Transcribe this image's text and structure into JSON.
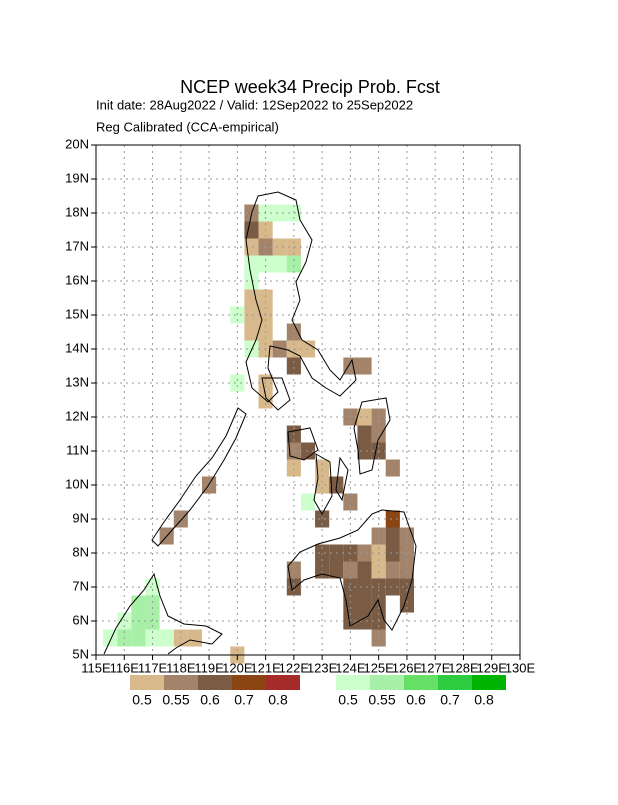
{
  "chart_data": {
    "type": "map",
    "title": "NCEP week34 Precip Prob. Fcst",
    "subtitle": [
      "Init date: 28Aug2022 / Valid: 12Sep2022 to 25Sep2022",
      "Reg Calibrated (CCA-empirical)"
    ],
    "xlim": [
      115,
      130
    ],
    "ylim": [
      5,
      20
    ],
    "xticks": [
      {
        "value": 115,
        "label": "115E"
      },
      {
        "value": 116,
        "label": "116E"
      },
      {
        "value": 117,
        "label": "117E"
      },
      {
        "value": 118,
        "label": "118E"
      },
      {
        "value": 119,
        "label": "119E"
      },
      {
        "value": 120,
        "label": "120E"
      },
      {
        "value": 121,
        "label": "121E"
      },
      {
        "value": 122,
        "label": "122E"
      },
      {
        "value": 123,
        "label": "123E"
      },
      {
        "value": 124,
        "label": "124E"
      },
      {
        "value": 125,
        "label": "125E"
      },
      {
        "value": 126,
        "label": "126E"
      },
      {
        "value": 127,
        "label": "127E"
      },
      {
        "value": 128,
        "label": "128E"
      },
      {
        "value": 129,
        "label": "129E"
      },
      {
        "value": 130,
        "label": "130E"
      }
    ],
    "yticks": [
      {
        "value": 5,
        "label": "5N"
      },
      {
        "value": 6,
        "label": "6N"
      },
      {
        "value": 7,
        "label": "7N"
      },
      {
        "value": 8,
        "label": "8N"
      },
      {
        "value": 9,
        "label": "9N"
      },
      {
        "value": 10,
        "label": "10N"
      },
      {
        "value": 11,
        "label": "11N"
      },
      {
        "value": 12,
        "label": "12N"
      },
      {
        "value": 13,
        "label": "13N"
      },
      {
        "value": 14,
        "label": "14N"
      },
      {
        "value": 15,
        "label": "15N"
      },
      {
        "value": 16,
        "label": "16N"
      },
      {
        "value": 17,
        "label": "17N"
      },
      {
        "value": 18,
        "label": "18N"
      },
      {
        "value": 19,
        "label": "19N"
      },
      {
        "value": 20,
        "label": "20N"
      }
    ],
    "grid": true,
    "cell_size": 0.5,
    "layers": [
      {
        "colors": [
          "#d8b98c",
          "#a3846a",
          "#7a5c45",
          "#8b4513",
          "#a52a2a"
        ],
        "labels": [
          0.5,
          0.55,
          0.6,
          0.7,
          0.8
        ],
        "cells": [
          [
            120.5,
            18,
            0.55
          ],
          [
            120.5,
            17.5,
            0.6
          ],
          [
            121,
            17.5,
            0.5
          ],
          [
            121.5,
            17,
            0.5
          ],
          [
            122,
            17,
            0.5
          ],
          [
            120.5,
            17,
            0.5
          ],
          [
            121,
            17,
            0.55
          ],
          [
            120.5,
            15.5,
            0.5
          ],
          [
            121,
            15.5,
            0.5
          ],
          [
            120.5,
            15,
            0.5
          ],
          [
            121,
            15,
            0.5
          ],
          [
            120.5,
            14.5,
            0.5
          ],
          [
            121,
            14.5,
            0.5
          ],
          [
            121,
            14,
            0.5
          ],
          [
            121.5,
            14,
            0.55
          ],
          [
            122,
            14.5,
            0.55
          ],
          [
            122,
            14,
            0.5
          ],
          [
            122.5,
            14,
            0.5
          ],
          [
            121,
            13,
            0.5
          ],
          [
            121,
            12.5,
            0.5
          ],
          [
            122,
            13.5,
            0.6
          ],
          [
            124,
            13.5,
            0.55
          ],
          [
            124.5,
            13.5,
            0.55
          ],
          [
            124,
            12,
            0.55
          ],
          [
            124.5,
            12,
            0.5
          ],
          [
            125,
            12,
            0.55
          ],
          [
            124.5,
            11.5,
            0.6
          ],
          [
            125,
            11.5,
            0.55
          ],
          [
            124.5,
            11,
            0.6
          ],
          [
            125,
            11,
            0.6
          ],
          [
            125.5,
            10.5,
            0.55
          ],
          [
            122,
            11.5,
            0.6
          ],
          [
            122,
            11,
            0.55
          ],
          [
            122.5,
            11,
            0.6
          ],
          [
            122,
            10.5,
            0.5
          ],
          [
            123,
            10.5,
            0.5
          ],
          [
            123,
            10,
            0.5
          ],
          [
            123.5,
            10,
            0.6
          ],
          [
            124,
            9.5,
            0.55
          ],
          [
            123,
            9,
            0.6
          ],
          [
            125.5,
            9,
            0.7
          ],
          [
            125,
            8.5,
            0.55
          ],
          [
            125.5,
            8.5,
            0.6
          ],
          [
            126,
            8.5,
            0.55
          ],
          [
            123,
            8,
            0.6
          ],
          [
            123.5,
            8,
            0.6
          ],
          [
            124,
            8,
            0.6
          ],
          [
            124.5,
            8,
            0.55
          ],
          [
            125,
            8,
            0.5
          ],
          [
            125.5,
            8,
            0.6
          ],
          [
            126,
            8,
            0.55
          ],
          [
            123,
            7.5,
            0.6
          ],
          [
            123.5,
            7.5,
            0.6
          ],
          [
            124,
            7.5,
            0.55
          ],
          [
            124.5,
            7.5,
            0.6
          ],
          [
            125,
            7.5,
            0.5
          ],
          [
            125.5,
            7.5,
            0.55
          ],
          [
            126,
            7.5,
            0.55
          ],
          [
            122,
            7.5,
            0.55
          ],
          [
            122,
            7,
            0.6
          ],
          [
            124,
            7,
            0.6
          ],
          [
            124.5,
            7,
            0.6
          ],
          [
            125,
            7,
            0.6
          ],
          [
            125.5,
            7,
            0.6
          ],
          [
            126,
            7,
            0.6
          ],
          [
            126,
            6.5,
            0.6
          ],
          [
            124,
            6.5,
            0.6
          ],
          [
            124.5,
            6.5,
            0.6
          ],
          [
            125,
            6.5,
            0.6
          ],
          [
            124,
            6,
            0.6
          ],
          [
            124.5,
            6,
            0.6
          ],
          [
            125,
            6,
            0.6
          ],
          [
            125,
            5.5,
            0.55
          ],
          [
            119,
            10,
            0.55
          ],
          [
            118,
            9,
            0.55
          ],
          [
            117.5,
            8.5,
            0.55
          ],
          [
            118,
            5.5,
            0.5
          ],
          [
            118.5,
            5.5,
            0.5
          ],
          [
            120,
            5,
            0.5
          ]
        ]
      },
      {
        "colors": [
          "#ccffcc",
          "#a8f0a8",
          "#66e066",
          "#2ecc40",
          "#00b400"
        ],
        "labels": [
          0.5,
          0.55,
          0.6,
          0.7,
          0.8
        ],
        "cells": [
          [
            121,
            18,
            0.5
          ],
          [
            121.5,
            18,
            0.5
          ],
          [
            122,
            18,
            0.5
          ],
          [
            120.5,
            16.5,
            0.5
          ],
          [
            121,
            16.5,
            0.5
          ],
          [
            121.5,
            16.5,
            0.5
          ],
          [
            122,
            16.5,
            0.55
          ],
          [
            120.5,
            16,
            0.5
          ],
          [
            120,
            15,
            0.5
          ],
          [
            120.5,
            14,
            0.5
          ],
          [
            120,
            13,
            0.5
          ],
          [
            122.5,
            9.5,
            0.5
          ],
          [
            117,
            7,
            0.5
          ],
          [
            116.5,
            6.5,
            0.55
          ],
          [
            117,
            6.5,
            0.55
          ],
          [
            116,
            6,
            0.5
          ],
          [
            116.5,
            6,
            0.55
          ],
          [
            117,
            6,
            0.55
          ],
          [
            115.5,
            5.5,
            0.5
          ],
          [
            116,
            5.5,
            0.55
          ],
          [
            116.5,
            5.5,
            0.55
          ],
          [
            117,
            5.5,
            0.5
          ],
          [
            117.5,
            5.5,
            0.5
          ]
        ]
      }
    ]
  }
}
